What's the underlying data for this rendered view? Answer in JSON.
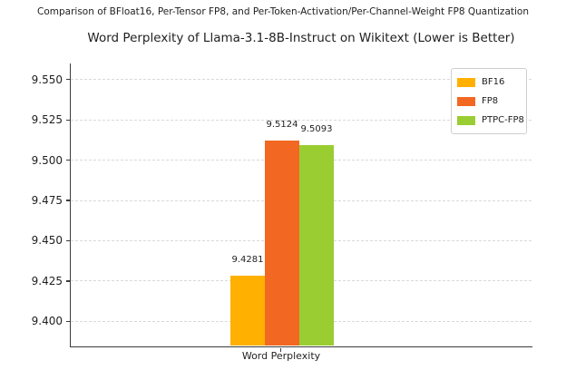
{
  "suptitle": "Comparison of BFloat16, Per-Tensor FP8, and Per-Token-Activation/Per-Channel-Weight FP8 Quantization",
  "chart_data": {
    "type": "bar",
    "title": "Word Perplexity of Llama-3.1-8B-Instruct on Wikitext (Lower is Better)",
    "categories": [
      "Word Perplexity"
    ],
    "series": [
      {
        "name": "BF16",
        "values": [
          9.4281
        ],
        "color": "#FFB000"
      },
      {
        "name": "FP8",
        "values": [
          9.5124
        ],
        "color": "#F26822"
      },
      {
        "name": "PTPC-FP8",
        "values": [
          9.5093
        ],
        "color": "#9ACD32"
      }
    ],
    "bar_labels": [
      "9.4281",
      "9.5124",
      "9.5093"
    ],
    "ylim": [
      9.385,
      9.56
    ],
    "yticks": [
      9.4,
      9.425,
      9.45,
      9.475,
      9.5,
      9.525,
      9.55
    ],
    "ytick_labels": [
      "9.400",
      "9.425",
      "9.450",
      "9.475",
      "9.500",
      "9.525",
      "9.550"
    ],
    "grid": true,
    "grid_style": "horizontal-dashed",
    "legend_position": "upper right",
    "xlabel": "",
    "ylabel": ""
  },
  "colors": {
    "background": "#ffffff",
    "text": "#1f1f1f",
    "spine": "#3c3c3c",
    "grid": "#d9d9d9",
    "legend_border": "#cfcfcf"
  }
}
